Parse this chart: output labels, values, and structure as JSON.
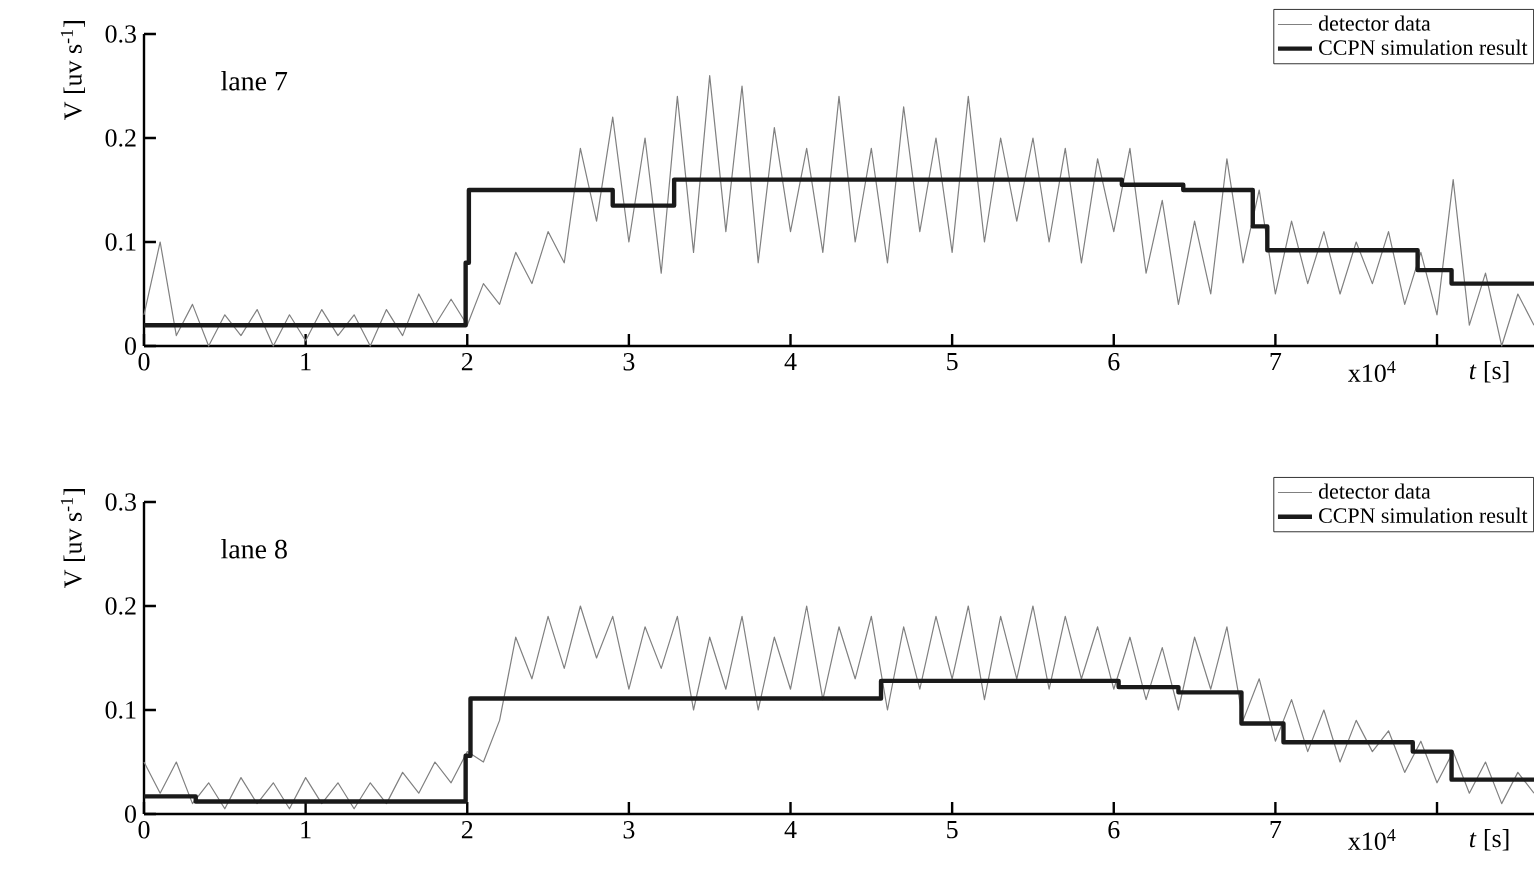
{
  "chart_data": [
    {
      "type": "line",
      "ylabel": "V [uv s$^{-1}$]",
      "xlabel": "*t* [s]",
      "annotations": [
        "lane 7",
        "x10$^{4}$"
      ],
      "xlim": [
        0,
        8.6
      ],
      "xticks": [
        0,
        1,
        2,
        3,
        4,
        5,
        6,
        7,
        {
          "value": 8,
          "label": null
        }
      ],
      "ylim": [
        0,
        0.3
      ],
      "yticks": [
        0,
        0.1,
        0.2,
        0.3
      ],
      "legend": "top right",
      "marker": "none",
      "x": [
        0,
        0.1,
        0.2,
        0.3,
        0.4,
        0.5,
        0.6,
        0.7,
        0.8,
        0.9,
        1,
        1.1,
        1.2,
        1.3,
        1.4,
        1.5,
        1.6,
        1.7,
        1.8,
        1.9,
        2,
        2.1,
        2.2,
        2.3,
        2.4,
        2.5,
        2.6,
        2.7,
        2.8,
        2.9,
        3,
        3.1,
        3.2,
        3.3,
        3.4,
        3.5,
        3.6,
        3.7,
        3.8,
        3.9,
        4,
        4.1,
        4.2,
        4.3,
        4.4,
        4.5,
        4.6,
        4.7,
        4.8,
        4.9,
        5,
        5.1,
        5.2,
        5.3,
        5.4,
        5.5,
        5.6,
        5.7,
        5.8,
        5.9,
        6,
        6.1,
        6.2,
        6.3,
        6.4,
        6.5,
        6.6,
        6.7,
        6.8,
        6.9,
        7,
        7.1,
        7.2,
        7.3,
        7.4,
        7.5,
        7.6,
        7.7,
        7.8,
        7.9,
        8,
        8.1,
        8.2,
        8.3,
        8.4,
        8.5,
        8.6
      ],
      "series": [
        {
          "name": "detector data",
          "color": "#808080",
          "values": [
            0.03,
            0.1,
            0.01,
            0.04,
            0.0,
            0.03,
            0.01,
            0.035,
            0.0,
            0.03,
            0.005,
            0.035,
            0.01,
            0.03,
            0.0,
            0.035,
            0.01,
            0.05,
            0.02,
            0.045,
            0.02,
            0.06,
            0.04,
            0.09,
            0.06,
            0.11,
            0.08,
            0.19,
            0.12,
            0.22,
            0.1,
            0.2,
            0.07,
            0.24,
            0.09,
            0.26,
            0.11,
            0.25,
            0.08,
            0.21,
            0.11,
            0.19,
            0.09,
            0.24,
            0.1,
            0.19,
            0.08,
            0.23,
            0.11,
            0.2,
            0.09,
            0.24,
            0.1,
            0.2,
            0.12,
            0.2,
            0.1,
            0.19,
            0.08,
            0.18,
            0.11,
            0.19,
            0.07,
            0.14,
            0.04,
            0.12,
            0.05,
            0.18,
            0.08,
            0.15,
            0.05,
            0.12,
            0.06,
            0.11,
            0.05,
            0.1,
            0.06,
            0.11,
            0.04,
            0.09,
            0.03,
            0.16,
            0.02,
            0.07,
            0.0,
            0.05,
            0.02
          ]
        },
        {
          "name": "CCPN simulation result",
          "color": "#1a1a1a",
          "type": "step",
          "x": [
            0,
            1.99,
            2.01,
            2.9,
            3.28,
            6.05,
            6.43,
            6.86,
            6.95,
            7.88,
            8.09,
            8.6
          ],
          "values": [
            0.02,
            0.08,
            0.15,
            0.135,
            0.16,
            0.155,
            0.15,
            0.115,
            0.092,
            0.073,
            0.06,
            0.06
          ]
        }
      ]
    },
    {
      "type": "line",
      "ylabel": "V [uv s$^{-1}$]",
      "xlabel": "*t* [s]",
      "annotations": [
        "lane 8",
        "x10$^{4}$"
      ],
      "xlim": [
        0,
        8.6
      ],
      "xticks": [
        0,
        1,
        2,
        3,
        4,
        5,
        6,
        7,
        {
          "value": 8,
          "label": null
        }
      ],
      "ylim": [
        0,
        0.3
      ],
      "yticks": [
        0,
        0.1,
        0.2,
        0.3
      ],
      "legend": "top right",
      "marker": "none",
      "x": [
        0,
        0.1,
        0.2,
        0.3,
        0.4,
        0.5,
        0.6,
        0.7,
        0.8,
        0.9,
        1,
        1.1,
        1.2,
        1.3,
        1.4,
        1.5,
        1.6,
        1.7,
        1.8,
        1.9,
        2,
        2.1,
        2.2,
        2.3,
        2.4,
        2.5,
        2.6,
        2.7,
        2.8,
        2.9,
        3,
        3.1,
        3.2,
        3.3,
        3.4,
        3.5,
        3.6,
        3.7,
        3.8,
        3.9,
        4,
        4.1,
        4.2,
        4.3,
        4.4,
        4.5,
        4.6,
        4.7,
        4.8,
        4.9,
        5,
        5.1,
        5.2,
        5.3,
        5.4,
        5.5,
        5.6,
        5.7,
        5.8,
        5.9,
        6,
        6.1,
        6.2,
        6.3,
        6.4,
        6.5,
        6.6,
        6.7,
        6.8,
        6.9,
        7,
        7.1,
        7.2,
        7.3,
        7.4,
        7.5,
        7.6,
        7.7,
        7.8,
        7.9,
        8,
        8.1,
        8.2,
        8.3,
        8.4,
        8.5,
        8.6
      ],
      "series": [
        {
          "name": "detector data",
          "color": "#808080",
          "values": [
            0.05,
            0.02,
            0.05,
            0.01,
            0.03,
            0.005,
            0.035,
            0.01,
            0.03,
            0.005,
            0.035,
            0.01,
            0.03,
            0.005,
            0.03,
            0.01,
            0.04,
            0.02,
            0.05,
            0.03,
            0.06,
            0.05,
            0.09,
            0.17,
            0.13,
            0.19,
            0.14,
            0.2,
            0.15,
            0.19,
            0.12,
            0.18,
            0.14,
            0.19,
            0.1,
            0.17,
            0.12,
            0.19,
            0.1,
            0.17,
            0.12,
            0.2,
            0.11,
            0.18,
            0.13,
            0.19,
            0.1,
            0.18,
            0.12,
            0.19,
            0.13,
            0.2,
            0.11,
            0.19,
            0.13,
            0.2,
            0.12,
            0.19,
            0.13,
            0.18,
            0.12,
            0.17,
            0.11,
            0.16,
            0.1,
            0.17,
            0.12,
            0.18,
            0.09,
            0.13,
            0.07,
            0.11,
            0.06,
            0.1,
            0.05,
            0.09,
            0.06,
            0.08,
            0.04,
            0.07,
            0.03,
            0.06,
            0.02,
            0.05,
            0.01,
            0.04,
            0.02
          ]
        },
        {
          "name": "CCPN simulation result",
          "color": "#1a1a1a",
          "type": "step",
          "x": [
            0,
            0.32,
            1.99,
            2.02,
            4.56,
            6.03,
            6.4,
            6.79,
            7.05,
            7.85,
            8.09,
            8.6
          ],
          "values": [
            0.017,
            0.012,
            0.056,
            0.111,
            0.128,
            0.122,
            0.117,
            0.087,
            0.069,
            0.06,
            0.033,
            0.033
          ]
        }
      ]
    }
  ]
}
